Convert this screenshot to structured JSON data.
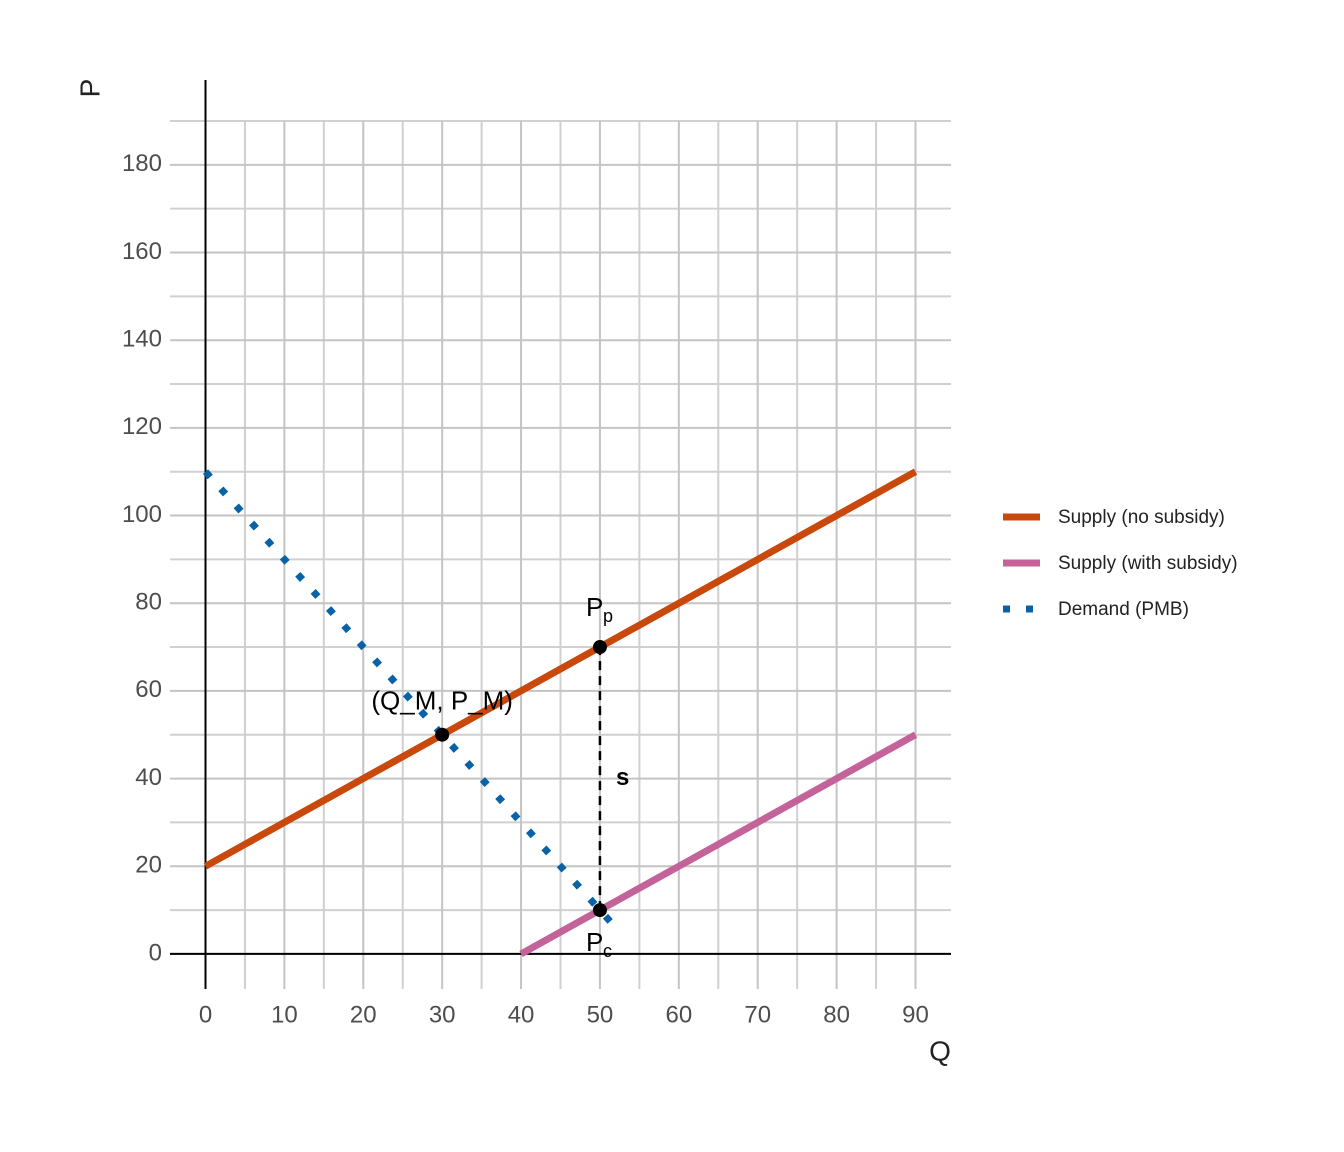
{
  "chart_data": {
    "type": "line",
    "xlabel": "Q",
    "ylabel": "P",
    "xlim": [
      -4.5,
      94.5
    ],
    "ylim": [
      -8,
      190
    ],
    "xticks": [
      0,
      10,
      20,
      30,
      40,
      50,
      60,
      70,
      80,
      90
    ],
    "yticks": [
      0,
      20,
      40,
      60,
      80,
      100,
      120,
      140,
      160,
      180
    ],
    "xminor": [
      5,
      15,
      25,
      35,
      45,
      55,
      65,
      75,
      85
    ],
    "yminor": [
      10,
      30,
      50,
      70,
      90,
      110,
      130,
      150,
      170,
      190
    ],
    "grid": true,
    "series": [
      {
        "name": "Supply (no subsidy)",
        "color": "#c9490c",
        "style": "solid",
        "x": [
          0,
          90
        ],
        "values": [
          20,
          110
        ]
      },
      {
        "name": "Supply (with subsidy)",
        "color": "#c4639a",
        "style": "solid",
        "x": [
          40,
          90
        ],
        "values": [
          0,
          50
        ]
      },
      {
        "name": "Demand (PMB)",
        "color": "#0862a8",
        "style": "dotted",
        "x": [
          0,
          52.5
        ],
        "values": [
          110,
          5
        ]
      }
    ],
    "points": {
      "x": [
        30,
        50,
        50
      ],
      "values": [
        50,
        70,
        10
      ]
    },
    "subsidy_segment": {
      "x": [
        50,
        50
      ],
      "values": [
        10,
        70
      ]
    },
    "annotations": [
      {
        "text": "(Q_M, P_M)"
      },
      {
        "text": "P",
        "sub": "p"
      },
      {
        "text": "P",
        "sub": "c"
      },
      {
        "text": "s"
      }
    ]
  }
}
